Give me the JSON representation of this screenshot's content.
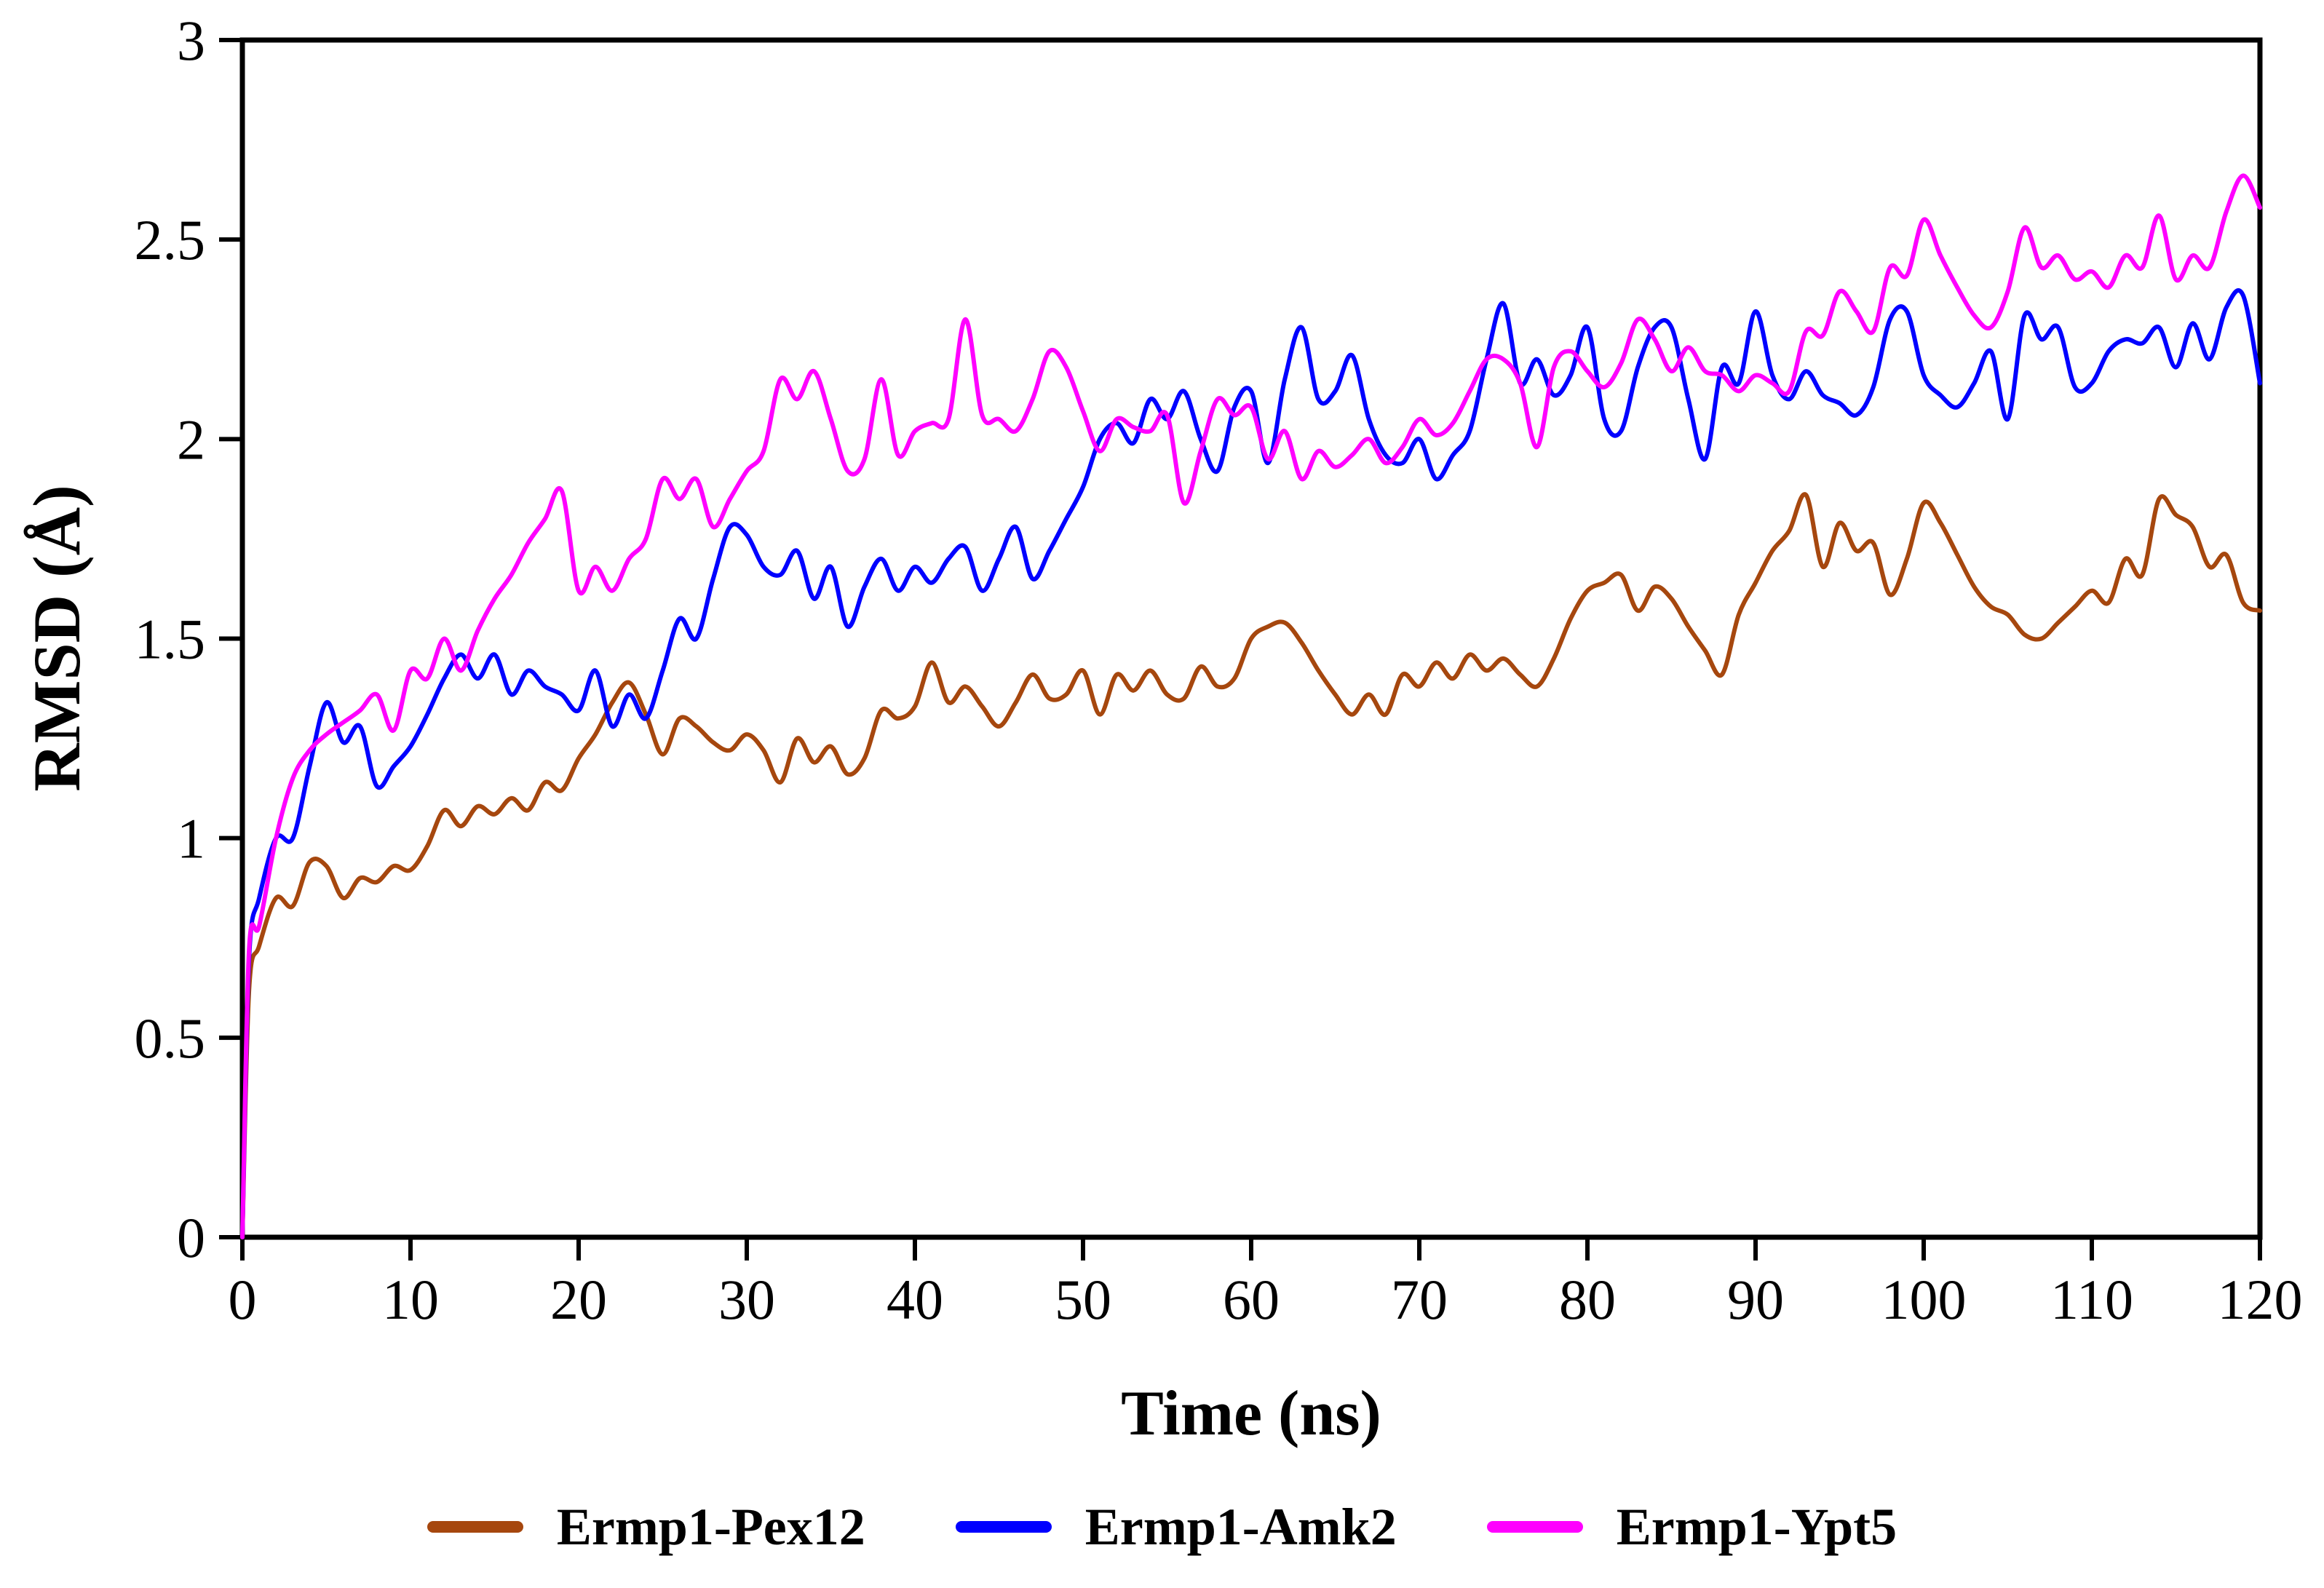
{
  "figure": {
    "background": "#ffffff",
    "axis_color": "#000000"
  },
  "chart_data": {
    "type": "line",
    "title": "",
    "xlabel": "Time (ns)",
    "ylabel": "RMSD (Å)",
    "xlim": [
      0,
      120
    ],
    "ylim": [
      0,
      3
    ],
    "grid": false,
    "legend_position": "bottom",
    "x_ticks": [
      0,
      10,
      20,
      30,
      40,
      50,
      60,
      70,
      80,
      90,
      100,
      110,
      120
    ],
    "y_ticks": [
      0,
      0.5,
      1,
      1.5,
      2,
      2.5,
      3
    ],
    "y_tick_labels": [
      "0",
      "0.5",
      "1",
      "1.5",
      "2",
      "2.5",
      "3"
    ],
    "x": [
      0,
      0.4,
      1,
      2,
      3,
      4,
      5,
      6,
      7,
      8,
      9,
      10,
      11,
      12,
      13,
      14,
      15,
      16,
      17,
      18,
      19,
      20,
      21,
      22,
      23,
      24,
      25,
      26,
      27,
      28,
      29,
      30,
      31,
      32,
      33,
      34,
      35,
      36,
      37,
      38,
      39,
      40,
      41,
      42,
      43,
      44,
      45,
      46,
      47,
      48,
      49,
      50,
      51,
      52,
      53,
      54,
      55,
      56,
      57,
      58,
      59,
      60,
      61,
      62,
      63,
      64,
      65,
      66,
      67,
      68,
      69,
      70,
      71,
      72,
      73,
      74,
      75,
      76,
      77,
      78,
      79,
      80,
      81,
      82,
      83,
      84,
      85,
      86,
      87,
      88,
      89,
      90,
      91,
      92,
      93,
      94,
      95,
      96,
      97,
      98,
      99,
      100,
      101,
      102,
      103,
      104,
      105,
      106,
      107,
      108,
      109,
      110,
      111,
      112,
      113,
      114,
      115,
      116,
      117,
      118,
      119,
      120
    ],
    "series": [
      {
        "name": "Ermp1-Pex12",
        "color": "#A6470E",
        "values": [
          0,
          0.62,
          0.73,
          0.85,
          0.83,
          0.94,
          0.93,
          0.85,
          0.9,
          0.89,
          0.93,
          0.92,
          0.98,
          1.07,
          1.03,
          1.08,
          1.06,
          1.1,
          1.07,
          1.14,
          1.12,
          1.2,
          1.26,
          1.34,
          1.39,
          1.31,
          1.21,
          1.3,
          1.28,
          1.24,
          1.22,
          1.26,
          1.22,
          1.14,
          1.25,
          1.19,
          1.23,
          1.16,
          1.2,
          1.32,
          1.3,
          1.33,
          1.44,
          1.34,
          1.38,
          1.33,
          1.28,
          1.34,
          1.41,
          1.35,
          1.36,
          1.42,
          1.31,
          1.41,
          1.37,
          1.42,
          1.36,
          1.35,
          1.43,
          1.38,
          1.4,
          1.5,
          1.53,
          1.54,
          1.49,
          1.42,
          1.36,
          1.31,
          1.36,
          1.31,
          1.41,
          1.38,
          1.44,
          1.4,
          1.46,
          1.42,
          1.45,
          1.41,
          1.38,
          1.45,
          1.55,
          1.62,
          1.64,
          1.66,
          1.57,
          1.63,
          1.6,
          1.53,
          1.47,
          1.41,
          1.56,
          1.64,
          1.72,
          1.77,
          1.86,
          1.68,
          1.79,
          1.72,
          1.74,
          1.61,
          1.7,
          1.84,
          1.79,
          1.71,
          1.63,
          1.58,
          1.56,
          1.51,
          1.5,
          1.54,
          1.58,
          1.62,
          1.59,
          1.7,
          1.66,
          1.85,
          1.81,
          1.78,
          1.68,
          1.71,
          1.59,
          1.57
        ]
      },
      {
        "name": "Ermp1-Amk2",
        "color": "#0000FF",
        "values": [
          0,
          0.7,
          0.85,
          1.0,
          1.0,
          1.18,
          1.34,
          1.24,
          1.28,
          1.13,
          1.18,
          1.23,
          1.31,
          1.4,
          1.46,
          1.4,
          1.46,
          1.36,
          1.42,
          1.38,
          1.36,
          1.32,
          1.42,
          1.28,
          1.36,
          1.3,
          1.42,
          1.55,
          1.5,
          1.65,
          1.78,
          1.76,
          1.68,
          1.66,
          1.72,
          1.6,
          1.68,
          1.53,
          1.63,
          1.7,
          1.62,
          1.68,
          1.64,
          1.7,
          1.73,
          1.62,
          1.7,
          1.78,
          1.65,
          1.72,
          1.8,
          1.88,
          2.0,
          2.04,
          1.99,
          2.1,
          2.05,
          2.12,
          2.0,
          1.92,
          2.08,
          2.12,
          1.94,
          2.15,
          2.28,
          2.1,
          2.12,
          2.21,
          2.05,
          1.96,
          1.94,
          2.0,
          1.9,
          1.96,
          2.02,
          2.2,
          2.34,
          2.14,
          2.2,
          2.11,
          2.16,
          2.28,
          2.05,
          2.02,
          2.18,
          2.28,
          2.28,
          2.1,
          1.95,
          2.18,
          2.14,
          2.32,
          2.16,
          2.1,
          2.17,
          2.11,
          2.09,
          2.06,
          2.13,
          2.3,
          2.32,
          2.16,
          2.11,
          2.08,
          2.14,
          2.22,
          2.05,
          2.31,
          2.25,
          2.28,
          2.13,
          2.14,
          2.22,
          2.25,
          2.24,
          2.28,
          2.18,
          2.29,
          2.2,
          2.33,
          2.36,
          2.14
        ]
      },
      {
        "name": "Ermp1-Ypt5",
        "color": "#FF00FF",
        "values": [
          0,
          0.72,
          0.78,
          1.0,
          1.15,
          1.22,
          1.26,
          1.29,
          1.32,
          1.36,
          1.27,
          1.42,
          1.4,
          1.5,
          1.42,
          1.52,
          1.6,
          1.66,
          1.74,
          1.8,
          1.87,
          1.62,
          1.68,
          1.62,
          1.7,
          1.75,
          1.9,
          1.85,
          1.9,
          1.78,
          1.85,
          1.92,
          1.97,
          2.15,
          2.1,
          2.17,
          2.05,
          1.92,
          1.95,
          2.15,
          1.96,
          2.02,
          2.04,
          2.05,
          2.3,
          2.06,
          2.05,
          2.02,
          2.1,
          2.22,
          2.18,
          2.07,
          1.97,
          2.05,
          2.03,
          2.02,
          2.06,
          1.84,
          1.97,
          2.1,
          2.06,
          2.08,
          1.95,
          2.02,
          1.9,
          1.97,
          1.93,
          1.96,
          2.0,
          1.94,
          1.98,
          2.05,
          2.01,
          2.04,
          2.12,
          2.2,
          2.2,
          2.14,
          1.98,
          2.18,
          2.22,
          2.17,
          2.13,
          2.19,
          2.3,
          2.25,
          2.17,
          2.23,
          2.17,
          2.16,
          2.12,
          2.16,
          2.14,
          2.12,
          2.27,
          2.26,
          2.37,
          2.32,
          2.27,
          2.43,
          2.41,
          2.55,
          2.46,
          2.38,
          2.31,
          2.28,
          2.37,
          2.53,
          2.43,
          2.46,
          2.4,
          2.42,
          2.38,
          2.46,
          2.43,
          2.56,
          2.4,
          2.46,
          2.43,
          2.57,
          2.66,
          2.58
        ]
      }
    ]
  }
}
